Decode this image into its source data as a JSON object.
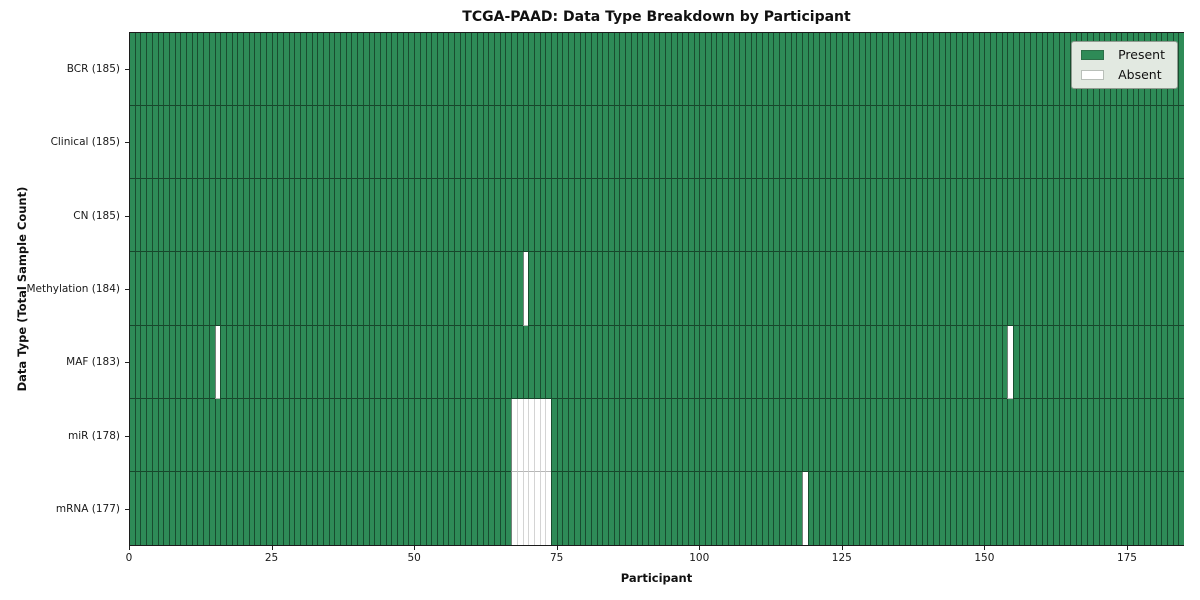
{
  "title": "TCGA-PAAD: Data Type Breakdown by Participant",
  "chart_data": {
    "type": "heatmap",
    "title": "TCGA-PAAD: Data Type Breakdown by Participant",
    "xlabel": "Participant",
    "ylabel": "Data Type (Total Sample Count)",
    "n_participants": 185,
    "xlim": [
      0,
      185
    ],
    "x_ticks": [
      0,
      25,
      50,
      75,
      100,
      125,
      150,
      175
    ],
    "grid": true,
    "legend_position": "upper right",
    "colors": {
      "present": "#2e8b57",
      "absent": "#ffffff"
    },
    "legend": {
      "items": [
        {
          "label": "Present",
          "key": "present"
        },
        {
          "label": "Absent",
          "key": "absent"
        }
      ]
    },
    "rows": [
      {
        "label": "BCR (185)",
        "data_type": "BCR",
        "total_samples": 185,
        "absent_participants": []
      },
      {
        "label": "Clinical (185)",
        "data_type": "Clinical",
        "total_samples": 185,
        "absent_participants": []
      },
      {
        "label": "CN (185)",
        "data_type": "CN",
        "total_samples": 185,
        "absent_participants": []
      },
      {
        "label": "Methylation (184)",
        "data_type": "Methylation",
        "total_samples": 184,
        "absent_participants": [
          69
        ]
      },
      {
        "label": "MAF (183)",
        "data_type": "MAF",
        "total_samples": 183,
        "absent_participants": [
          15,
          154
        ]
      },
      {
        "label": "miR (178)",
        "data_type": "miR",
        "total_samples": 178,
        "absent_participants": [
          67,
          68,
          69,
          70,
          71,
          72,
          73
        ]
      },
      {
        "label": "mRNA (177)",
        "data_type": "mRNA",
        "total_samples": 177,
        "absent_participants": [
          67,
          68,
          69,
          70,
          71,
          72,
          73,
          118
        ]
      }
    ]
  }
}
